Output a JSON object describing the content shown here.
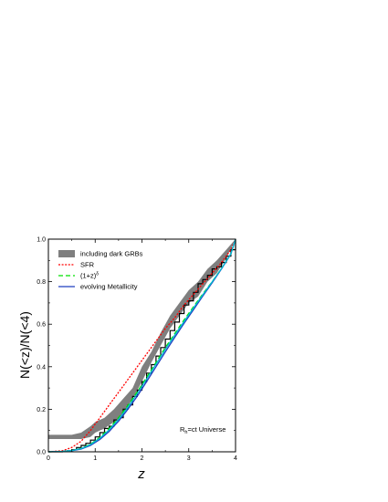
{
  "chart_data": {
    "type": "line",
    "xlabel": "z",
    "ylabel": "N(<z)/N(<4)",
    "xlim": [
      0,
      4
    ],
    "ylim": [
      0,
      1.0
    ],
    "x_ticks": [
      "0",
      "1",
      "2",
      "3",
      "4"
    ],
    "y_ticks": [
      "0.0",
      "0.2",
      "0.4",
      "0.6",
      "0.8",
      "1.0"
    ],
    "annotation": {
      "main": "R",
      "sub": "h",
      "rest": "=ct Universe"
    },
    "legend_position": "top-left",
    "series": [
      {
        "name": "including dark GRBs",
        "kind": "band",
        "color": "#7f7f7f",
        "x": [
          0.0,
          0.5,
          0.7,
          0.9,
          1.0,
          1.2,
          1.4,
          1.6,
          1.8,
          2.0,
          2.2,
          2.4,
          2.6,
          2.8,
          3.0,
          3.2,
          3.4,
          3.6,
          3.8,
          4.0
        ],
        "lower": [
          0.06,
          0.06,
          0.06,
          0.07,
          0.09,
          0.11,
          0.14,
          0.18,
          0.25,
          0.33,
          0.42,
          0.5,
          0.58,
          0.64,
          0.7,
          0.73,
          0.8,
          0.84,
          0.91,
          1.0
        ],
        "upper": [
          0.08,
          0.08,
          0.09,
          0.12,
          0.14,
          0.16,
          0.2,
          0.25,
          0.3,
          0.4,
          0.47,
          0.56,
          0.64,
          0.7,
          0.76,
          0.8,
          0.86,
          0.9,
          0.95,
          1.0
        ]
      },
      {
        "name": "",
        "kind": "step",
        "color": "#000000",
        "x": [
          0.0,
          0.3,
          0.4,
          0.5,
          0.6,
          0.7,
          0.8,
          0.9,
          1.0,
          1.1,
          1.2,
          1.3,
          1.4,
          1.5,
          1.6,
          1.7,
          1.8,
          1.9,
          2.0,
          2.1,
          2.2,
          2.3,
          2.4,
          2.5,
          2.6,
          2.7,
          2.8,
          2.9,
          3.0,
          3.1,
          3.2,
          3.3,
          3.4,
          3.5,
          3.6,
          3.7,
          3.8,
          3.9,
          4.0
        ],
        "y": [
          0.0,
          0.002,
          0.005,
          0.01,
          0.02,
          0.03,
          0.04,
          0.055,
          0.07,
          0.09,
          0.11,
          0.12,
          0.15,
          0.16,
          0.2,
          0.22,
          0.26,
          0.29,
          0.33,
          0.37,
          0.41,
          0.45,
          0.49,
          0.53,
          0.57,
          0.61,
          0.65,
          0.69,
          0.71,
          0.75,
          0.79,
          0.81,
          0.83,
          0.86,
          0.87,
          0.89,
          0.92,
          0.95,
          1.0
        ]
      },
      {
        "name": "SFR",
        "kind": "line",
        "style": "dotted",
        "color": "#ff0000",
        "x": [
          0.0,
          0.3,
          0.5,
          0.7,
          0.9,
          1.1,
          1.3,
          1.5,
          1.7,
          1.9,
          2.1,
          2.3,
          2.5,
          2.7,
          2.9,
          3.1,
          3.3,
          3.5,
          3.7,
          3.9,
          4.0
        ],
        "y": [
          0.0,
          0.005,
          0.02,
          0.05,
          0.1,
          0.16,
          0.22,
          0.28,
          0.34,
          0.4,
          0.46,
          0.52,
          0.58,
          0.63,
          0.69,
          0.74,
          0.79,
          0.84,
          0.89,
          0.95,
          1.0
        ]
      },
      {
        "name": "(1+z)",
        "superscript": "δ",
        "kind": "line",
        "style": "dashed",
        "color": "#00e000",
        "x": [
          0.0,
          0.3,
          0.5,
          0.7,
          0.9,
          1.1,
          1.3,
          1.5,
          1.7,
          1.9,
          2.1,
          2.3,
          2.5,
          2.7,
          2.9,
          3.1,
          3.3,
          3.5,
          3.7,
          3.9,
          4.0
        ],
        "y": [
          0.0,
          0.002,
          0.006,
          0.016,
          0.036,
          0.068,
          0.11,
          0.16,
          0.218,
          0.282,
          0.35,
          0.42,
          0.49,
          0.556,
          0.62,
          0.682,
          0.742,
          0.8,
          0.862,
          0.93,
          1.0
        ]
      },
      {
        "name": "evolving Metallicity",
        "kind": "line",
        "style": "solid",
        "color": "#1f3fbf",
        "x": [
          0.0,
          0.3,
          0.5,
          0.7,
          0.9,
          1.1,
          1.3,
          1.5,
          1.7,
          1.9,
          2.1,
          2.3,
          2.5,
          2.7,
          2.9,
          3.1,
          3.3,
          3.5,
          3.7,
          3.9,
          4.0
        ],
        "y": [
          0.0,
          0.002,
          0.005,
          0.013,
          0.03,
          0.058,
          0.096,
          0.144,
          0.2,
          0.262,
          0.33,
          0.4,
          0.47,
          0.538,
          0.604,
          0.668,
          0.732,
          0.795,
          0.86,
          0.93,
          1.0
        ]
      },
      {
        "name": "",
        "kind": "line",
        "style": "solid",
        "color": "#00bcd4",
        "x": [
          0.0,
          0.3,
          0.5,
          0.7,
          0.9,
          1.1,
          1.3,
          1.5,
          1.7,
          1.9,
          2.1,
          2.3,
          2.5,
          2.7,
          2.9,
          3.1,
          3.3,
          3.5,
          3.7,
          3.9,
          4.0
        ],
        "y": [
          0.0,
          0.002,
          0.006,
          0.015,
          0.034,
          0.064,
          0.104,
          0.153,
          0.21,
          0.274,
          0.342,
          0.412,
          0.482,
          0.549,
          0.613,
          0.676,
          0.738,
          0.799,
          0.862,
          0.931,
          1.0
        ]
      }
    ]
  }
}
